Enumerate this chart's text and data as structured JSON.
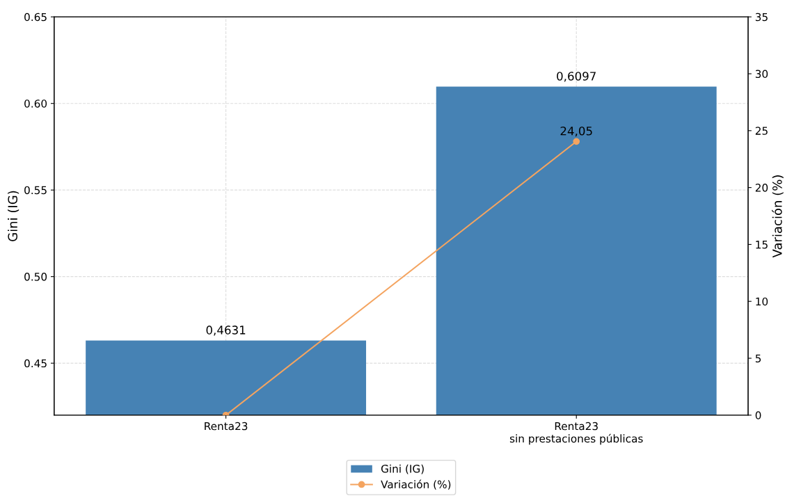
{
  "chart_data": {
    "type": "bar",
    "categories": [
      "Renta23",
      "Renta23\nsin prestaciones públicas"
    ],
    "ylabel": "Gini (IG)",
    "y2label": "Variación (%)",
    "ylim": [
      0.42,
      0.65
    ],
    "yticks": [
      {
        "value": 0.45,
        "label": "0.45"
      },
      {
        "value": 0.5,
        "label": "0.50"
      },
      {
        "value": 0.55,
        "label": "0.55"
      },
      {
        "value": 0.6,
        "label": "0.60"
      },
      {
        "value": 0.65,
        "label": "0.65"
      }
    ],
    "y2lim": [
      0,
      35
    ],
    "y2ticks": [
      0,
      5,
      10,
      15,
      20,
      25,
      30,
      35
    ],
    "series": [
      {
        "name": "Gini (IG)",
        "color": "#4682b4",
        "values": [
          0.4631,
          0.6097
        ],
        "value_labels": [
          "0,4631",
          "0,6097"
        ]
      },
      {
        "name": "Variación (%)",
        "type": "line",
        "axis": "y2",
        "color": "#f4a460",
        "marker": "circle",
        "values": [
          0,
          24.05
        ],
        "value_labels": [
          null,
          "24,05"
        ]
      }
    ],
    "grid": true,
    "legend": "bottom"
  }
}
